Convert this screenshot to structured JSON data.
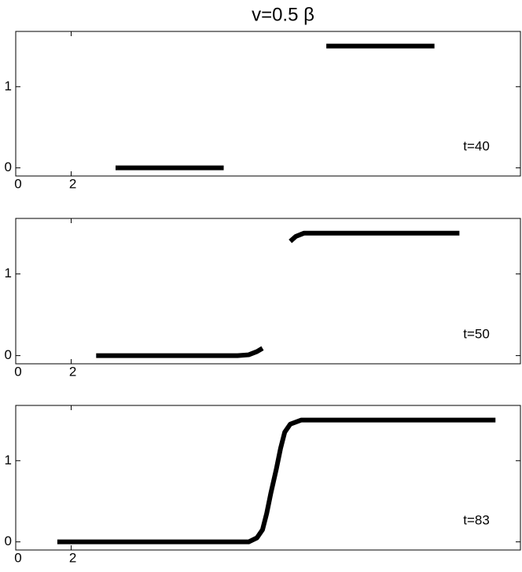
{
  "chart_data": [
    {
      "type": "line",
      "title": "v=0.5 β",
      "annotation": "t=40",
      "color": "#000000",
      "xlim": [
        0,
        18.2
      ],
      "ylim": [
        -0.1,
        1.68
      ],
      "xticks": [
        0,
        2
      ],
      "yticks": [
        0,
        1
      ],
      "x": [
        3.6,
        7.5,
        9.3,
        11.2,
        15.1
      ],
      "y": [
        0,
        0,
        null,
        1.5,
        1.5
      ]
    },
    {
      "type": "line",
      "annotation": "t=50",
      "color": "#000000",
      "xlim": [
        0,
        18.2
      ],
      "ylim": [
        -0.1,
        1.68
      ],
      "xticks": [
        0,
        2
      ],
      "yticks": [
        0,
        1
      ],
      "x": [
        2.9,
        8.0,
        8.4,
        8.7,
        8.9,
        9.4,
        9.9,
        10.1,
        10.4,
        16.0
      ],
      "y": [
        0,
        0,
        0.01,
        0.05,
        0.09,
        null,
        1.4,
        1.46,
        1.5,
        1.5
      ]
    },
    {
      "type": "line",
      "annotation": "t=83",
      "color": "#000000",
      "xlim": [
        0,
        18.2
      ],
      "ylim": [
        -0.1,
        1.68
      ],
      "xticks": [
        0,
        2
      ],
      "yticks": [
        0,
        1
      ],
      "x": [
        1.5,
        8.4,
        8.7,
        8.9,
        9.05,
        9.2,
        9.3,
        9.4,
        9.55,
        9.7,
        9.9,
        10.3,
        17.3
      ],
      "y": [
        0,
        0,
        0.05,
        0.15,
        0.35,
        0.6,
        0.75,
        0.9,
        1.15,
        1.35,
        1.45,
        1.5,
        1.5
      ]
    }
  ]
}
